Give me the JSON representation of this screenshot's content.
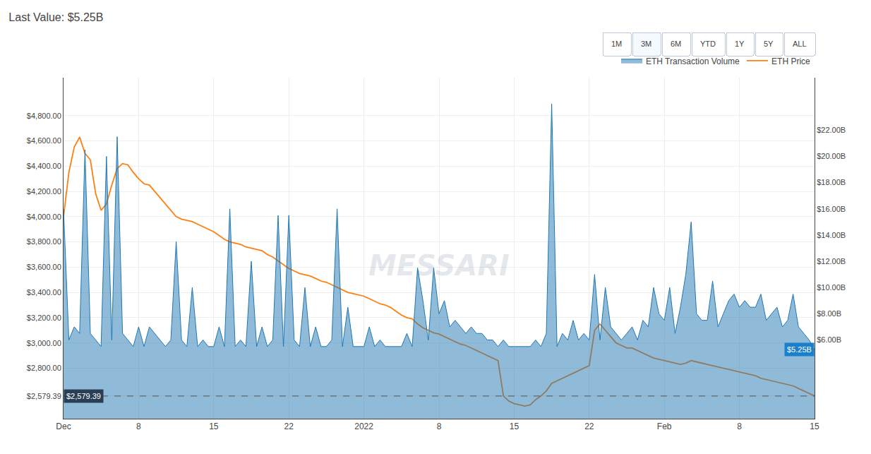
{
  "chart_data": {
    "type": "line",
    "title": "Last Value: $5.25B",
    "categories": [
      "Dec",
      null,
      null,
      null,
      null,
      null,
      null,
      null,
      null,
      null,
      null,
      null,
      null,
      null,
      "8",
      null,
      null,
      null,
      null,
      null,
      null,
      null,
      null,
      null,
      null,
      null,
      null,
      null,
      "15",
      null,
      null,
      null,
      null,
      null,
      null,
      null,
      null,
      null,
      null,
      null,
      null,
      null,
      "22",
      null,
      null,
      null,
      null,
      null,
      null,
      null,
      null,
      null,
      null,
      null,
      null,
      null,
      "2022",
      null,
      null,
      null,
      null,
      null,
      null,
      null,
      null,
      null,
      null,
      null,
      null,
      null,
      "8",
      null,
      null,
      null,
      null,
      null,
      null,
      null,
      null,
      null,
      null,
      null,
      null,
      null,
      "15",
      null,
      null,
      null,
      null,
      null,
      null,
      null,
      null,
      null,
      null,
      null,
      null,
      null,
      "22",
      null,
      null,
      null,
      null,
      null,
      null,
      null,
      null,
      null,
      null,
      null,
      null,
      null,
      "Feb",
      null,
      null,
      null,
      null,
      null,
      null,
      null,
      null,
      null,
      null,
      null,
      null,
      null,
      "8",
      null,
      null,
      null,
      null,
      null,
      null,
      null,
      null,
      null,
      null,
      null,
      null,
      null,
      "15"
    ],
    "series": [
      {
        "name": "ETH Transaction Volume",
        "type": "area",
        "axis": "y2",
        "values": [
          16.0,
          6.0,
          7.0,
          6.5,
          20.5,
          6.5,
          6.0,
          5.5,
          20.0,
          6.0,
          21.5,
          6.5,
          6.0,
          5.5,
          7.0,
          5.5,
          7.0,
          6.5,
          6.0,
          5.5,
          6.0,
          13.5,
          6.0,
          5.5,
          10.0,
          5.5,
          6.0,
          5.5,
          5.5,
          7.0,
          5.5,
          16.0,
          5.5,
          6.0,
          5.5,
          12.0,
          5.5,
          7.0,
          5.5,
          6.0,
          15.5,
          5.5,
          15.5,
          6.0,
          5.5,
          10.0,
          5.5,
          7.0,
          5.5,
          5.5,
          6.0,
          16.0,
          5.5,
          8.5,
          5.5,
          5.5,
          5.5,
          7.0,
          5.5,
          6.0,
          5.5,
          5.5,
          5.5,
          5.5,
          6.5,
          5.5,
          11.5,
          9.0,
          6.0,
          11.5,
          8.0,
          9.0,
          7.0,
          7.5,
          7.0,
          6.5,
          7.0,
          6.5,
          6.5,
          6.0,
          6.0,
          5.5,
          6.0,
          5.5,
          5.5,
          5.5,
          5.5,
          5.5,
          6.0,
          5.5,
          6.5,
          24.0,
          5.5,
          6.5,
          6.0,
          7.5,
          6.0,
          6.5,
          6.0,
          11.0,
          6.0,
          10.0,
          7.0,
          6.5,
          6.0,
          6.5,
          7.0,
          6.0,
          7.5,
          7.0,
          10.0,
          8.0,
          7.5,
          10.0,
          6.5,
          8.5,
          11.0,
          15.0,
          8.0,
          7.5,
          7.5,
          10.5,
          7.0,
          8.0,
          9.0,
          9.5,
          8.5,
          9.0,
          8.5,
          8.5,
          9.5,
          7.5,
          8.0,
          8.5,
          7.0,
          7.5,
          9.5,
          7.0,
          6.5,
          6.0,
          5.25
        ]
      },
      {
        "name": "ETH Price",
        "type": "line",
        "axis": "y",
        "values": [
          4000,
          4350,
          4550,
          4630,
          4500,
          4450,
          4180,
          4050,
          4100,
          4250,
          4380,
          4420,
          4410,
          4350,
          4300,
          4260,
          4250,
          4200,
          4150,
          4100,
          4050,
          4000,
          3980,
          3970,
          3960,
          3940,
          3920,
          3900,
          3880,
          3850,
          3820,
          3800,
          3790,
          3780,
          3760,
          3750,
          3740,
          3730,
          3700,
          3680,
          3650,
          3620,
          3590,
          3570,
          3550,
          3540,
          3530,
          3510,
          3490,
          3480,
          3460,
          3440,
          3420,
          3400,
          3390,
          3380,
          3370,
          3350,
          3330,
          3310,
          3300,
          3280,
          3250,
          3220,
          3200,
          3190,
          3150,
          3120,
          3100,
          3080,
          3070,
          3050,
          3030,
          3010,
          2990,
          2980,
          2960,
          2940,
          2920,
          2900,
          2880,
          2860,
          2580,
          2540,
          2520,
          2510,
          2500,
          2510,
          2550,
          2580,
          2620,
          2680,
          2700,
          2720,
          2740,
          2760,
          2780,
          2800,
          2820,
          3100,
          3150,
          3100,
          3050,
          3000,
          2980,
          2960,
          2960,
          2940,
          2920,
          2900,
          2880,
          2870,
          2860,
          2850,
          2840,
          2830,
          2840,
          2860,
          2850,
          2840,
          2830,
          2820,
          2810,
          2800,
          2790,
          2780,
          2770,
          2760,
          2750,
          2740,
          2720,
          2710,
          2700,
          2690,
          2680,
          2670,
          2660,
          2640,
          2620,
          2600,
          2580
        ]
      }
    ],
    "ylim": [
      2400,
      5100
    ],
    "yticks": [
      {
        "value": 2579.39,
        "label": "$2,579.39"
      },
      {
        "value": 2800,
        "label": "$2,800.00"
      },
      {
        "value": 3000,
        "label": "$3,000.00"
      },
      {
        "value": 3200,
        "label": "$3,200.00"
      },
      {
        "value": 3400,
        "label": "$3,400.00"
      },
      {
        "value": 3600,
        "label": "$3,600.00"
      },
      {
        "value": 3800,
        "label": "$3,800.00"
      },
      {
        "value": 4000,
        "label": "$4,000.00"
      },
      {
        "value": 4200,
        "label": "$4,200.00"
      },
      {
        "value": 4400,
        "label": "$4,400.00"
      },
      {
        "value": 4600,
        "label": "$4,600.00"
      },
      {
        "value": 4800,
        "label": "$4,800.00"
      }
    ],
    "y2lim": [
      0,
      26
    ],
    "y2ticks": [
      {
        "value": 6.0,
        "label": "$6.00B"
      },
      {
        "value": 8.0,
        "label": "$8.00B"
      },
      {
        "value": 10.0,
        "label": "$10.00B"
      },
      {
        "value": 12.0,
        "label": "$12.00B"
      },
      {
        "value": 14.0,
        "label": "$14.00B"
      },
      {
        "value": 16.0,
        "label": "$16.00B"
      },
      {
        "value": 18.0,
        "label": "$18.00B"
      },
      {
        "value": 20.0,
        "label": "$20.00B"
      },
      {
        "value": 22.0,
        "label": "$22.00B"
      }
    ],
    "hlines": [
      {
        "y": 2579.39,
        "line_style": "dashed"
      }
    ],
    "annotations": [
      {
        "text": "$2,579.39",
        "y": 2579.39,
        "axis": "y"
      },
      {
        "text": "$5.25B",
        "y": 5.25,
        "axis": "y2"
      }
    ],
    "watermark": "MESSARI",
    "buttons": [
      "1M",
      "3M",
      "6M",
      "YTD",
      "1Y",
      "5Y",
      "ALL"
    ],
    "active_button": "3M",
    "grid": true,
    "legend": "top right"
  }
}
